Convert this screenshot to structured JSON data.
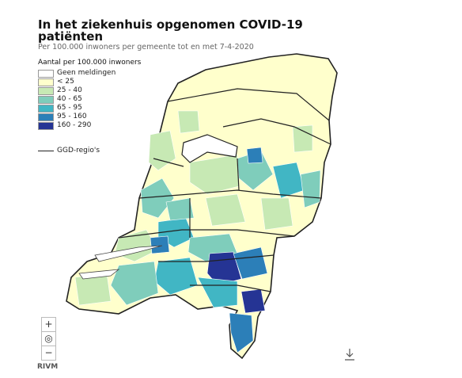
{
  "header": {
    "title_lines": [
      "In het ziekenhuis opgenomen COVID-19",
      "patiënten"
    ],
    "subtitle": "Per 100.000 inwoners per gemeente tot en met 7-4-2020"
  },
  "legend": {
    "title": "Aantal per 100.000 inwoners",
    "items": [
      {
        "label": "Geen meldingen",
        "color": "#ffffff"
      },
      {
        "label": "< 25",
        "color": "#ffffcc"
      },
      {
        "label": "25 - 40",
        "color": "#c7e9b4"
      },
      {
        "label": "40 - 65",
        "color": "#7fcdbb"
      },
      {
        "label": "65 - 95",
        "color": "#41b6c4"
      },
      {
        "label": "95 - 160",
        "color": "#2c7fb8"
      },
      {
        "label": "160 - 290",
        "color": "#253494"
      }
    ],
    "line_label": "GGD-regio's"
  },
  "controls": {
    "zoom_in": "+",
    "locate": "◎",
    "zoom_out": "−"
  },
  "source": "RIVM"
}
